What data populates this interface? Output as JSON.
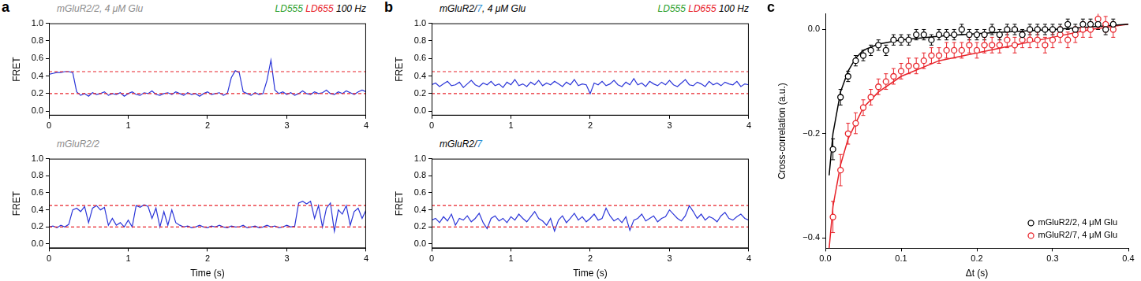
{
  "chart_data": [
    {
      "type": "line",
      "panel": "a",
      "title_parts": [
        {
          "text": "mGluR2/2, 4 μM Glu",
          "color": "#8c8c8c"
        }
      ],
      "annotation_parts": [
        {
          "text": "LD555",
          "color": "#2ca02c"
        },
        {
          "text": " LD655",
          "color": "#e8232a"
        },
        {
          "text": " 100 Hz",
          "color": "#000000"
        }
      ],
      "ylabel": "FRET",
      "color": "#2b35d8",
      "grid": false,
      "xlim": [
        0,
        4
      ],
      "xticks": [
        0,
        1,
        2,
        3,
        4
      ],
      "ylim": [
        -0.05,
        1.0
      ],
      "yticks": [
        {
          "value": 0,
          "label": "0.0"
        },
        0.2,
        0.4,
        0.6,
        0.8,
        {
          "value": 1,
          "label": "1.0"
        }
      ],
      "reference_lines": {
        "values": [
          0.45,
          0.2
        ],
        "color": "#e8232a",
        "line_style": "dashed"
      },
      "x": [
        0,
        0.05,
        0.1,
        0.15,
        0.2,
        0.25,
        0.3,
        0.35,
        0.4,
        0.45,
        0.5,
        0.55,
        0.6,
        0.65,
        0.7,
        0.75,
        0.8,
        0.85,
        0.9,
        0.95,
        1,
        1.05,
        1.1,
        1.15,
        1.2,
        1.25,
        1.3,
        1.35,
        1.4,
        1.45,
        1.5,
        1.55,
        1.6,
        1.65,
        1.7,
        1.75,
        1.8,
        1.85,
        1.9,
        1.95,
        2,
        2.05,
        2.1,
        2.15,
        2.2,
        2.25,
        2.3,
        2.35,
        2.4,
        2.45,
        2.5,
        2.55,
        2.6,
        2.65,
        2.7,
        2.75,
        2.8,
        2.85,
        2.9,
        2.95,
        3,
        3.05,
        3.1,
        3.15,
        3.2,
        3.25,
        3.3,
        3.35,
        3.4,
        3.45,
        3.5,
        3.55,
        3.6,
        3.65,
        3.7,
        3.75,
        3.8,
        3.85,
        3.9,
        3.95,
        4
      ],
      "values": [
        0.42,
        0.43,
        0.44,
        0.44,
        0.45,
        0.45,
        0.44,
        0.22,
        0.18,
        0.2,
        0.17,
        0.21,
        0.19,
        0.2,
        0.22,
        0.18,
        0.2,
        0.19,
        0.21,
        0.17,
        0.2,
        0.22,
        0.19,
        0.18,
        0.21,
        0.2,
        0.23,
        0.19,
        0.18,
        0.2,
        0.21,
        0.19,
        0.22,
        0.2,
        0.18,
        0.21,
        0.19,
        0.2,
        0.17,
        0.2,
        0.22,
        0.19,
        0.2,
        0.21,
        0.18,
        0.2,
        0.38,
        0.46,
        0.44,
        0.22,
        0.2,
        0.18,
        0.21,
        0.19,
        0.2,
        0.35,
        0.58,
        0.24,
        0.2,
        0.22,
        0.19,
        0.21,
        0.18,
        0.2,
        0.23,
        0.2,
        0.19,
        0.22,
        0.2,
        0.21,
        0.24,
        0.2,
        0.19,
        0.22,
        0.2,
        0.23,
        0.21,
        0.19,
        0.22,
        0.24,
        0.22
      ]
    },
    {
      "type": "line",
      "title_parts": [
        {
          "text": "mGluR2/2",
          "color": "#8c8c8c"
        }
      ],
      "xlabel": "Time (s)",
      "ylabel": "FRET",
      "color": "#2b35d8",
      "grid": false,
      "xlim": [
        0,
        4
      ],
      "xticks": [
        0,
        1,
        2,
        3,
        4
      ],
      "ylim": [
        -0.05,
        1.0
      ],
      "yticks": [
        {
          "value": 0,
          "label": "0.0"
        },
        0.2,
        0.4,
        0.6,
        0.8,
        {
          "value": 1,
          "label": "1.0"
        }
      ],
      "reference_lines": {
        "values": [
          0.45,
          0.2
        ],
        "color": "#e8232a",
        "line_style": "dashed"
      },
      "x": [
        0,
        0.05,
        0.1,
        0.15,
        0.2,
        0.25,
        0.3,
        0.35,
        0.4,
        0.45,
        0.5,
        0.55,
        0.6,
        0.65,
        0.7,
        0.75,
        0.8,
        0.85,
        0.9,
        0.95,
        1,
        1.05,
        1.1,
        1.15,
        1.2,
        1.25,
        1.3,
        1.35,
        1.4,
        1.45,
        1.5,
        1.55,
        1.6,
        1.65,
        1.7,
        1.75,
        1.8,
        1.85,
        1.9,
        1.95,
        2,
        2.05,
        2.1,
        2.15,
        2.2,
        2.25,
        2.3,
        2.35,
        2.4,
        2.45,
        2.5,
        2.55,
        2.6,
        2.65,
        2.7,
        2.75,
        2.8,
        2.85,
        2.9,
        2.95,
        3,
        3.05,
        3.1,
        3.15,
        3.2,
        3.25,
        3.3,
        3.35,
        3.4,
        3.45,
        3.5,
        3.55,
        3.6,
        3.65,
        3.7,
        3.75,
        3.8,
        3.85,
        3.9,
        3.95,
        4
      ],
      "values": [
        0.2,
        0.21,
        0.19,
        0.22,
        0.2,
        0.23,
        0.4,
        0.42,
        0.38,
        0.44,
        0.25,
        0.42,
        0.45,
        0.4,
        0.43,
        0.22,
        0.3,
        0.22,
        0.25,
        0.2,
        0.28,
        0.2,
        0.45,
        0.43,
        0.46,
        0.44,
        0.3,
        0.42,
        0.2,
        0.38,
        0.22,
        0.4,
        0.25,
        0.22,
        0.2,
        0.21,
        0.19,
        0.2,
        0.22,
        0.2,
        0.19,
        0.21,
        0.2,
        0.22,
        0.2,
        0.19,
        0.21,
        0.2,
        0.2,
        0.22,
        0.19,
        0.2,
        0.21,
        0.19,
        0.2,
        0.22,
        0.2,
        0.21,
        0.19,
        0.2,
        0.22,
        0.2,
        0.21,
        0.48,
        0.5,
        0.47,
        0.5,
        0.3,
        0.45,
        0.2,
        0.42,
        0.48,
        0.15,
        0.4,
        0.35,
        0.45,
        0.22,
        0.38,
        0.42,
        0.3,
        0.4
      ]
    },
    {
      "type": "line",
      "panel": "b",
      "title_parts": [
        {
          "text": "mGluR2/",
          "color": "#000000"
        },
        {
          "text": "7",
          "color": "#2d8fd5"
        },
        {
          "text": ", 4 μM Glu",
          "color": "#000000"
        }
      ],
      "annotation_parts": [
        {
          "text": "LD555",
          "color": "#2ca02c"
        },
        {
          "text": " LD655",
          "color": "#e8232a"
        },
        {
          "text": " 100 Hz",
          "color": "#000000"
        }
      ],
      "ylabel": "FRET",
      "color": "#2b35d8",
      "grid": false,
      "xlim": [
        0,
        4
      ],
      "xticks": [
        0,
        1,
        2,
        3,
        4
      ],
      "ylim": [
        -0.05,
        1.0
      ],
      "yticks": [
        {
          "value": 0,
          "label": "0.0"
        },
        0.2,
        0.4,
        0.6,
        0.8,
        {
          "value": 1,
          "label": "1.0"
        }
      ],
      "reference_lines": {
        "values": [
          0.45,
          0.2
        ],
        "color": "#e8232a",
        "line_style": "dashed"
      },
      "x": [
        0,
        0.05,
        0.1,
        0.15,
        0.2,
        0.25,
        0.3,
        0.35,
        0.4,
        0.45,
        0.5,
        0.55,
        0.6,
        0.65,
        0.7,
        0.75,
        0.8,
        0.85,
        0.9,
        0.95,
        1,
        1.05,
        1.1,
        1.15,
        1.2,
        1.25,
        1.3,
        1.35,
        1.4,
        1.45,
        1.5,
        1.55,
        1.6,
        1.65,
        1.7,
        1.75,
        1.8,
        1.85,
        1.9,
        1.95,
        2,
        2.05,
        2.1,
        2.15,
        2.2,
        2.25,
        2.3,
        2.35,
        2.4,
        2.45,
        2.5,
        2.55,
        2.6,
        2.65,
        2.7,
        2.75,
        2.8,
        2.85,
        2.9,
        2.95,
        3,
        3.05,
        3.1,
        3.15,
        3.2,
        3.25,
        3.3,
        3.35,
        3.4,
        3.45,
        3.5,
        3.55,
        3.6,
        3.65,
        3.7,
        3.75,
        3.8,
        3.85,
        3.9,
        3.95,
        4
      ],
      "values": [
        0.3,
        0.32,
        0.28,
        0.31,
        0.34,
        0.29,
        0.3,
        0.33,
        0.27,
        0.31,
        0.35,
        0.3,
        0.28,
        0.32,
        0.3,
        0.34,
        0.29,
        0.31,
        0.27,
        0.33,
        0.3,
        0.36,
        0.29,
        0.31,
        0.28,
        0.33,
        0.3,
        0.35,
        0.29,
        0.32,
        0.3,
        0.34,
        0.31,
        0.28,
        0.33,
        0.3,
        0.36,
        0.29,
        0.31,
        0.3,
        0.2,
        0.32,
        0.3,
        0.34,
        0.29,
        0.31,
        0.35,
        0.3,
        0.28,
        0.33,
        0.3,
        0.37,
        0.3,
        0.32,
        0.28,
        0.34,
        0.31,
        0.29,
        0.33,
        0.3,
        0.35,
        0.3,
        0.28,
        0.32,
        0.36,
        0.3,
        0.29,
        0.33,
        0.31,
        0.28,
        0.34,
        0.3,
        0.32,
        0.29,
        0.33,
        0.31,
        0.3,
        0.34,
        0.28,
        0.31,
        0.3
      ]
    },
    {
      "type": "line",
      "title_parts": [
        {
          "text": "mGluR2/",
          "color": "#000000"
        },
        {
          "text": "7",
          "color": "#2d8fd5"
        }
      ],
      "xlabel": "Time (s)",
      "ylabel": "FRET",
      "color": "#2b35d8",
      "grid": false,
      "xlim": [
        0,
        4
      ],
      "xticks": [
        0,
        1,
        2,
        3,
        4
      ],
      "ylim": [
        -0.05,
        1.0
      ],
      "yticks": [
        {
          "value": 0,
          "label": "0.0"
        },
        0.2,
        0.4,
        0.6,
        0.8,
        {
          "value": 1,
          "label": "1.0"
        }
      ],
      "reference_lines": {
        "values": [
          0.45,
          0.2
        ],
        "color": "#e8232a",
        "line_style": "dashed"
      },
      "x": [
        0,
        0.05,
        0.1,
        0.15,
        0.2,
        0.25,
        0.3,
        0.35,
        0.4,
        0.45,
        0.5,
        0.55,
        0.6,
        0.65,
        0.7,
        0.75,
        0.8,
        0.85,
        0.9,
        0.95,
        1,
        1.05,
        1.1,
        1.15,
        1.2,
        1.25,
        1.3,
        1.35,
        1.4,
        1.45,
        1.5,
        1.55,
        1.6,
        1.65,
        1.7,
        1.75,
        1.8,
        1.85,
        1.9,
        1.95,
        2,
        2.05,
        2.1,
        2.15,
        2.2,
        2.25,
        2.3,
        2.35,
        2.4,
        2.45,
        2.5,
        2.55,
        2.6,
        2.65,
        2.7,
        2.75,
        2.8,
        2.85,
        2.9,
        2.95,
        3,
        3.05,
        3.1,
        3.15,
        3.2,
        3.25,
        3.3,
        3.35,
        3.4,
        3.45,
        3.5,
        3.55,
        3.6,
        3.65,
        3.7,
        3.75,
        3.8,
        3.85,
        3.9,
        3.95,
        4
      ],
      "values": [
        0.28,
        0.3,
        0.25,
        0.32,
        0.27,
        0.35,
        0.22,
        0.3,
        0.28,
        0.33,
        0.26,
        0.3,
        0.36,
        0.25,
        0.18,
        0.3,
        0.33,
        0.27,
        0.3,
        0.25,
        0.32,
        0.28,
        0.35,
        0.3,
        0.26,
        0.32,
        0.38,
        0.3,
        0.27,
        0.22,
        0.3,
        0.15,
        0.28,
        0.33,
        0.25,
        0.3,
        0.36,
        0.28,
        0.32,
        0.26,
        0.3,
        0.35,
        0.28,
        0.3,
        0.42,
        0.33,
        0.27,
        0.3,
        0.25,
        0.32,
        0.16,
        0.28,
        0.3,
        0.35,
        0.27,
        0.3,
        0.33,
        0.26,
        0.3,
        0.32,
        0.4,
        0.35,
        0.3,
        0.27,
        0.33,
        0.45,
        0.38,
        0.3,
        0.35,
        0.28,
        0.32,
        0.3,
        0.26,
        0.33,
        0.37,
        0.3,
        0.28,
        0.32,
        0.35,
        0.3,
        0.28
      ]
    },
    {
      "type": "scatter",
      "panel": "c",
      "xlabel": "Δt (s)",
      "ylabel": "Cross-correlation (a.u.)",
      "grid": false,
      "legend": "lower right",
      "xlim": [
        0,
        0.4
      ],
      "xticks": [
        {
          "value": 0,
          "label": "0.0"
        },
        0.1,
        0.2,
        0.3,
        0.4
      ],
      "ylim": [
        -0.42,
        0.03
      ],
      "yticks": [
        {
          "value": -0.4,
          "label": "−0.4"
        },
        {
          "value": -0.2,
          "label": "−0.2"
        },
        {
          "value": 0,
          "label": "0.0"
        }
      ],
      "series": [
        {
          "name": "mGluR2/2, 4 μM Glu",
          "type": "scatter",
          "marker": "circle_open",
          "color": "#000000",
          "x": [
            0.01,
            0.02,
            0.03,
            0.04,
            0.05,
            0.06,
            0.07,
            0.08,
            0.09,
            0.1,
            0.11,
            0.12,
            0.13,
            0.14,
            0.15,
            0.16,
            0.17,
            0.18,
            0.19,
            0.2,
            0.21,
            0.22,
            0.23,
            0.24,
            0.25,
            0.26,
            0.27,
            0.28,
            0.29,
            0.3,
            0.31,
            0.32,
            0.33,
            0.34,
            0.35,
            0.36,
            0.37,
            0.38
          ],
          "values": [
            -0.23,
            -0.13,
            -0.09,
            -0.06,
            -0.05,
            -0.04,
            -0.03,
            -0.04,
            -0.02,
            -0.02,
            -0.02,
            -0.01,
            -0.01,
            -0.02,
            -0.01,
            -0.01,
            -0.01,
            0,
            -0.01,
            -0.01,
            -0.01,
            0,
            -0.01,
            0,
            0,
            -0.01,
            0,
            0,
            0,
            0,
            0,
            0.01,
            0,
            0.01,
            0.01,
            0.01,
            0,
            0.01
          ],
          "errors": [
            0.02,
            0.015,
            0.01,
            0.01,
            0.01,
            0.01,
            0.01,
            0.01,
            0.01,
            0.01,
            0.01,
            0.01,
            0.01,
            0.01,
            0.01,
            0.01,
            0.01,
            0.01,
            0.01,
            0.01,
            0.01,
            0.01,
            0.01,
            0.01,
            0.01,
            0.01,
            0.01,
            0.01,
            0.01,
            0.01,
            0.01,
            0.01,
            0.01,
            0.01,
            0.01,
            0.01,
            0.01,
            0.01
          ]
        },
        {
          "name": "mGluR2/7, 4 μM Glu",
          "type": "scatter",
          "marker": "circle_open",
          "color": "#e8232a",
          "x": [
            0.01,
            0.02,
            0.03,
            0.04,
            0.05,
            0.06,
            0.07,
            0.08,
            0.09,
            0.1,
            0.11,
            0.12,
            0.13,
            0.14,
            0.15,
            0.16,
            0.17,
            0.18,
            0.19,
            0.2,
            0.21,
            0.22,
            0.23,
            0.24,
            0.25,
            0.26,
            0.27,
            0.28,
            0.29,
            0.3,
            0.31,
            0.32,
            0.33,
            0.34,
            0.35,
            0.36,
            0.37,
            0.38
          ],
          "values": [
            -0.36,
            -0.27,
            -0.2,
            -0.18,
            -0.15,
            -0.13,
            -0.11,
            -0.1,
            -0.09,
            -0.08,
            -0.07,
            -0.07,
            -0.06,
            -0.05,
            -0.05,
            -0.04,
            -0.04,
            -0.04,
            -0.03,
            -0.04,
            -0.03,
            -0.03,
            -0.03,
            -0.02,
            -0.03,
            -0.02,
            -0.02,
            -0.02,
            -0.03,
            -0.02,
            -0.01,
            -0.02,
            -0.01,
            0,
            0,
            0.02,
            0.01,
            0
          ],
          "errors": [
            0.03,
            0.03,
            0.02,
            0.02,
            0.015,
            0.015,
            0.015,
            0.015,
            0.015,
            0.015,
            0.015,
            0.015,
            0.015,
            0.015,
            0.015,
            0.015,
            0.015,
            0.015,
            0.015,
            0.015,
            0.015,
            0.015,
            0.015,
            0.015,
            0.015,
            0.015,
            0.015,
            0.015,
            0.015,
            0.015,
            0.015,
            0.015,
            0.015,
            0.015,
            0.015,
            0.015,
            0.015,
            0.015
          ]
        },
        {
          "type": "line",
          "line_style": "solid",
          "color": "#000000",
          "x": [
            0.005,
            0.01,
            0.02,
            0.03,
            0.04,
            0.05,
            0.07,
            0.1,
            0.15,
            0.2,
            0.25,
            0.3,
            0.35,
            0.4
          ],
          "values": [
            -0.28,
            -0.2,
            -0.12,
            -0.08,
            -0.055,
            -0.04,
            -0.028,
            -0.02,
            -0.013,
            -0.008,
            -0.004,
            0,
            0.005,
            0.01
          ]
        },
        {
          "type": "line",
          "line_style": "solid",
          "color": "#e8232a",
          "x": [
            0.005,
            0.01,
            0.02,
            0.03,
            0.04,
            0.05,
            0.07,
            0.1,
            0.15,
            0.2,
            0.25,
            0.3,
            0.35,
            0.4
          ],
          "values": [
            -0.42,
            -0.34,
            -0.26,
            -0.21,
            -0.18,
            -0.15,
            -0.12,
            -0.09,
            -0.06,
            -0.045,
            -0.03,
            -0.015,
            0,
            0.01
          ]
        }
      ]
    }
  ]
}
